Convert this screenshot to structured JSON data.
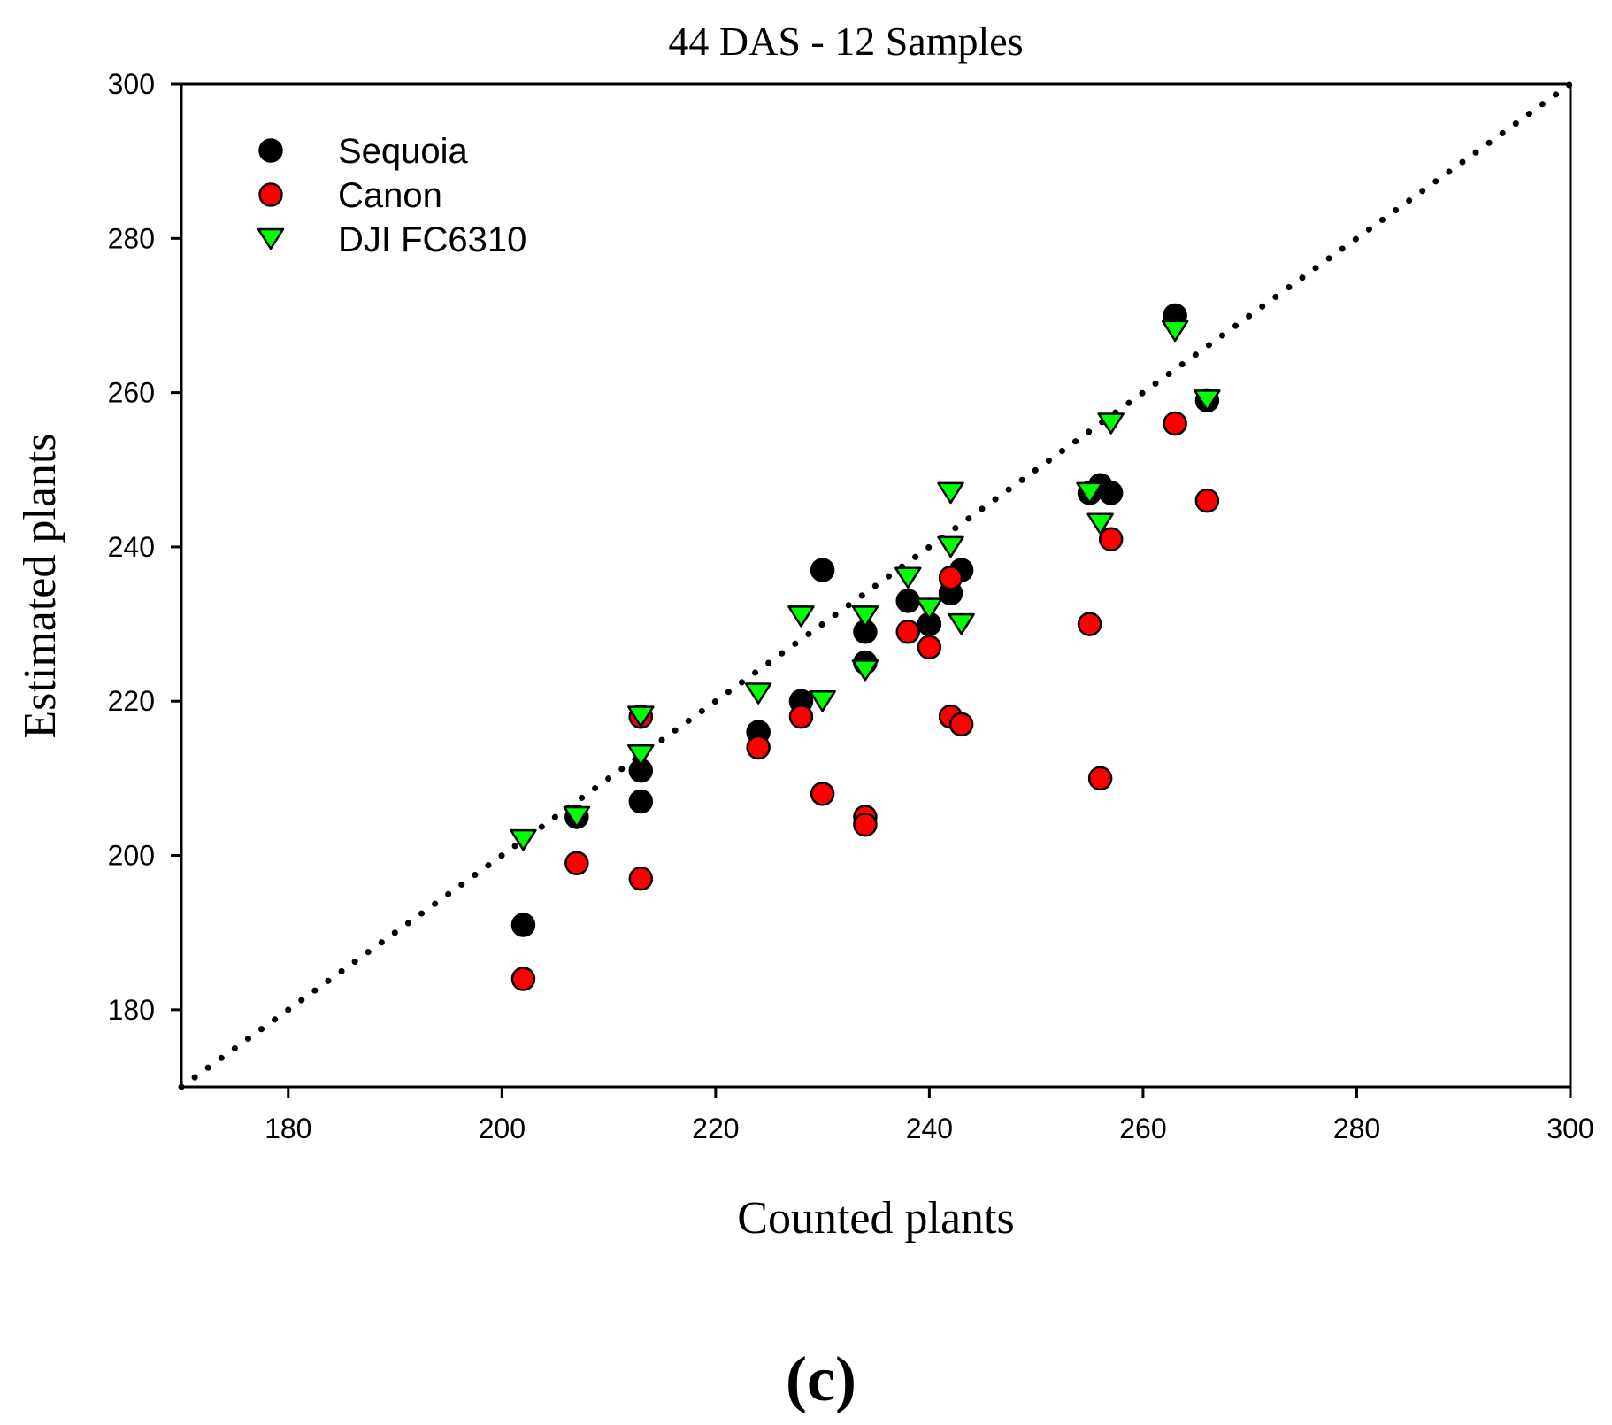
{
  "chart_data": {
    "type": "scatter",
    "title": "44 DAS - 12 Samples",
    "xlabel": "Counted plants",
    "ylabel": "Estimated plants",
    "panel_label": "(c)",
    "xlim": [
      170,
      300
    ],
    "ylim": [
      170,
      300
    ],
    "xticks": [
      180,
      200,
      220,
      240,
      260,
      280,
      300
    ],
    "yticks": [
      180,
      200,
      220,
      240,
      260,
      280,
      300
    ],
    "reference_line": {
      "style": "dotted",
      "from": [
        170,
        170
      ],
      "to": [
        300,
        300
      ]
    },
    "legend_position": "top-left",
    "series": [
      {
        "name": "Sequoia",
        "marker": "circle",
        "color": "#000000",
        "points": [
          [
            202,
            191
          ],
          [
            207,
            205
          ],
          [
            213,
            211
          ],
          [
            213,
            207
          ],
          [
            213,
            218
          ],
          [
            224,
            216
          ],
          [
            228,
            220
          ],
          [
            230,
            237
          ],
          [
            234,
            229
          ],
          [
            234,
            225
          ],
          [
            238,
            233
          ],
          [
            240,
            230
          ],
          [
            242,
            234
          ],
          [
            243,
            237
          ],
          [
            255,
            247
          ],
          [
            256,
            248
          ],
          [
            257,
            247
          ],
          [
            263,
            270
          ],
          [
            266,
            259
          ]
        ]
      },
      {
        "name": "Canon",
        "marker": "circle",
        "color": "#ff0000",
        "points": [
          [
            202,
            184
          ],
          [
            207,
            199
          ],
          [
            213,
            197
          ],
          [
            213,
            218
          ],
          [
            224,
            214
          ],
          [
            228,
            218
          ],
          [
            230,
            208
          ],
          [
            234,
            205
          ],
          [
            234,
            204
          ],
          [
            238,
            229
          ],
          [
            240,
            227
          ],
          [
            242,
            236
          ],
          [
            242,
            218
          ],
          [
            243,
            217
          ],
          [
            255,
            230
          ],
          [
            256,
            210
          ],
          [
            257,
            241
          ],
          [
            263,
            256
          ],
          [
            266,
            246
          ]
        ]
      },
      {
        "name": "DJI FC6310",
        "marker": "triangle-down",
        "color": "#00ff00",
        "points": [
          [
            202,
            202
          ],
          [
            207,
            205
          ],
          [
            213,
            218
          ],
          [
            213,
            213
          ],
          [
            224,
            221
          ],
          [
            228,
            231
          ],
          [
            230,
            220
          ],
          [
            234,
            231
          ],
          [
            234,
            224
          ],
          [
            238,
            236
          ],
          [
            240,
            232
          ],
          [
            242,
            247
          ],
          [
            242,
            240
          ],
          [
            243,
            230
          ],
          [
            255,
            247
          ],
          [
            256,
            243
          ],
          [
            257,
            256
          ],
          [
            263,
            268
          ],
          [
            266,
            259
          ]
        ]
      }
    ]
  }
}
